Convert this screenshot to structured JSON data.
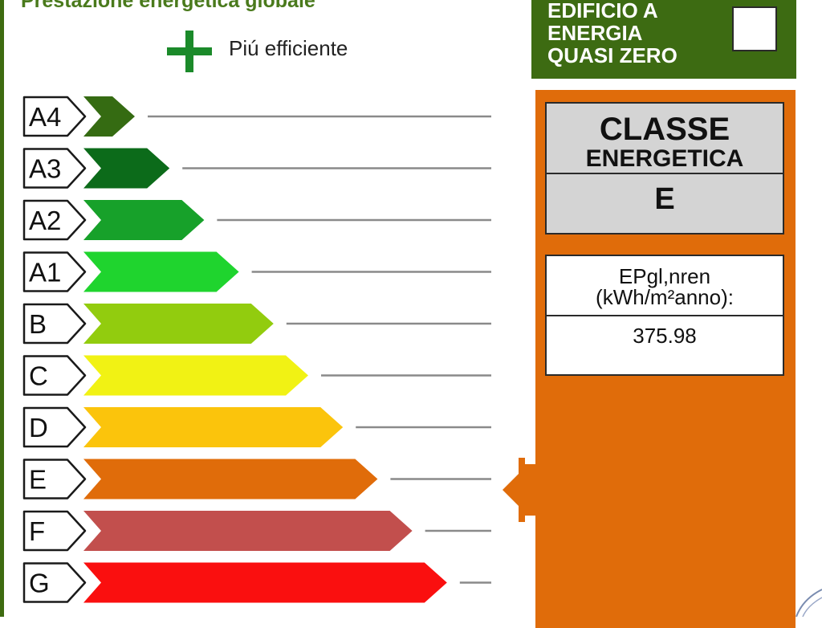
{
  "header": {
    "title": "Prestazione energetica globale",
    "more_efficient_label": "Piú efficiente"
  },
  "scale": {
    "classes": [
      {
        "label": "A4",
        "color": "#356b12"
      },
      {
        "label": "A3",
        "color": "#0c6b1a"
      },
      {
        "label": "A2",
        "color": "#17a12a"
      },
      {
        "label": "A1",
        "color": "#1fd42e"
      },
      {
        "label": "B",
        "color": "#92cc0e"
      },
      {
        "label": "C",
        "color": "#f1f214"
      },
      {
        "label": "D",
        "color": "#fbc40c"
      },
      {
        "label": "E",
        "color": "#e06c0a"
      },
      {
        "label": "F",
        "color": "#c24f4d"
      },
      {
        "label": "G",
        "color": "#fa0f0f"
      }
    ],
    "current_class": "E"
  },
  "nzeb": {
    "line1": "EDIFICIO A",
    "line2": "ENERGIA",
    "line3": "QUASI ZERO",
    "checked": false
  },
  "energy_class": {
    "title": "CLASSE",
    "subtitle": "ENERGETICA",
    "value": "E"
  },
  "ep": {
    "label_line1": "EPgl,nren",
    "label_line2": "(kWh/m²anno):",
    "value": "375.98"
  },
  "colors": {
    "frame_green": "#3e6b10",
    "nzeb_green": "#3d6b12",
    "panel_orange": "#e06c0a",
    "class_box_grey": "#d4d4d4",
    "plus_green": "#1b8a2a"
  }
}
